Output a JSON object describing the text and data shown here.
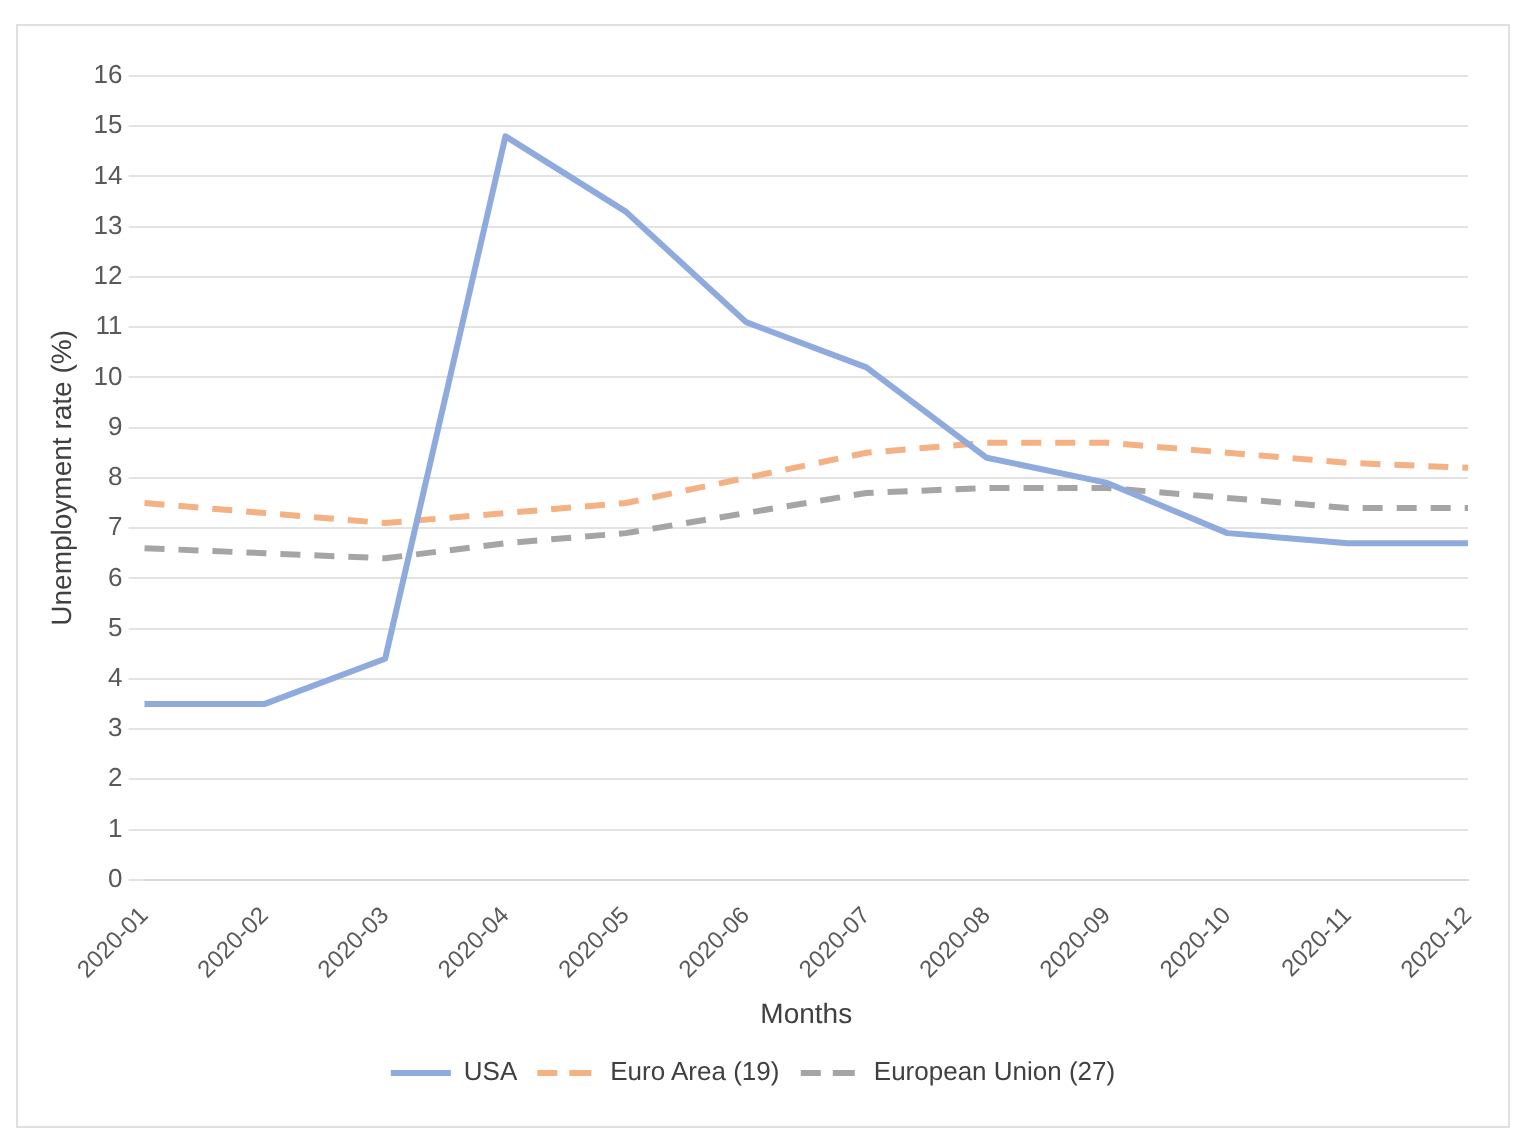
{
  "chart_data": {
    "type": "line",
    "xlabel": "Months",
    "ylabel": "Unemployment rate (%)",
    "categories": [
      "2020-01",
      "2020-02",
      "2020-03",
      "2020-04",
      "2020-05",
      "2020-06",
      "2020-07",
      "2020-08",
      "2020-09",
      "2020-10",
      "2020-11",
      "2020-12"
    ],
    "series": [
      {
        "name": "USA",
        "color": "#8faadc",
        "line_style": "solid",
        "values": [
          3.5,
          3.5,
          4.4,
          14.8,
          13.3,
          11.1,
          10.2,
          8.4,
          7.9,
          6.9,
          6.7,
          6.7
        ]
      },
      {
        "name": "Euro Area (19)",
        "color": "#f4b183",
        "line_style": "dashed",
        "values": [
          7.5,
          7.3,
          7.1,
          7.3,
          7.5,
          8.0,
          8.5,
          8.7,
          8.7,
          8.5,
          8.3,
          8.2
        ]
      },
      {
        "name": "European Union (27)",
        "color": "#a5a5a5",
        "line_style": "dashed",
        "values": [
          6.6,
          6.5,
          6.4,
          6.7,
          6.9,
          7.3,
          7.7,
          7.8,
          7.8,
          7.6,
          7.4,
          7.4
        ]
      }
    ],
    "ylim": [
      0,
      16
    ],
    "yticks": [
      0,
      1,
      2,
      3,
      4,
      5,
      6,
      7,
      8,
      9,
      10,
      11,
      12,
      13,
      14,
      15,
      16
    ],
    "grid": "y",
    "legend": "bottom",
    "marker": "none"
  }
}
